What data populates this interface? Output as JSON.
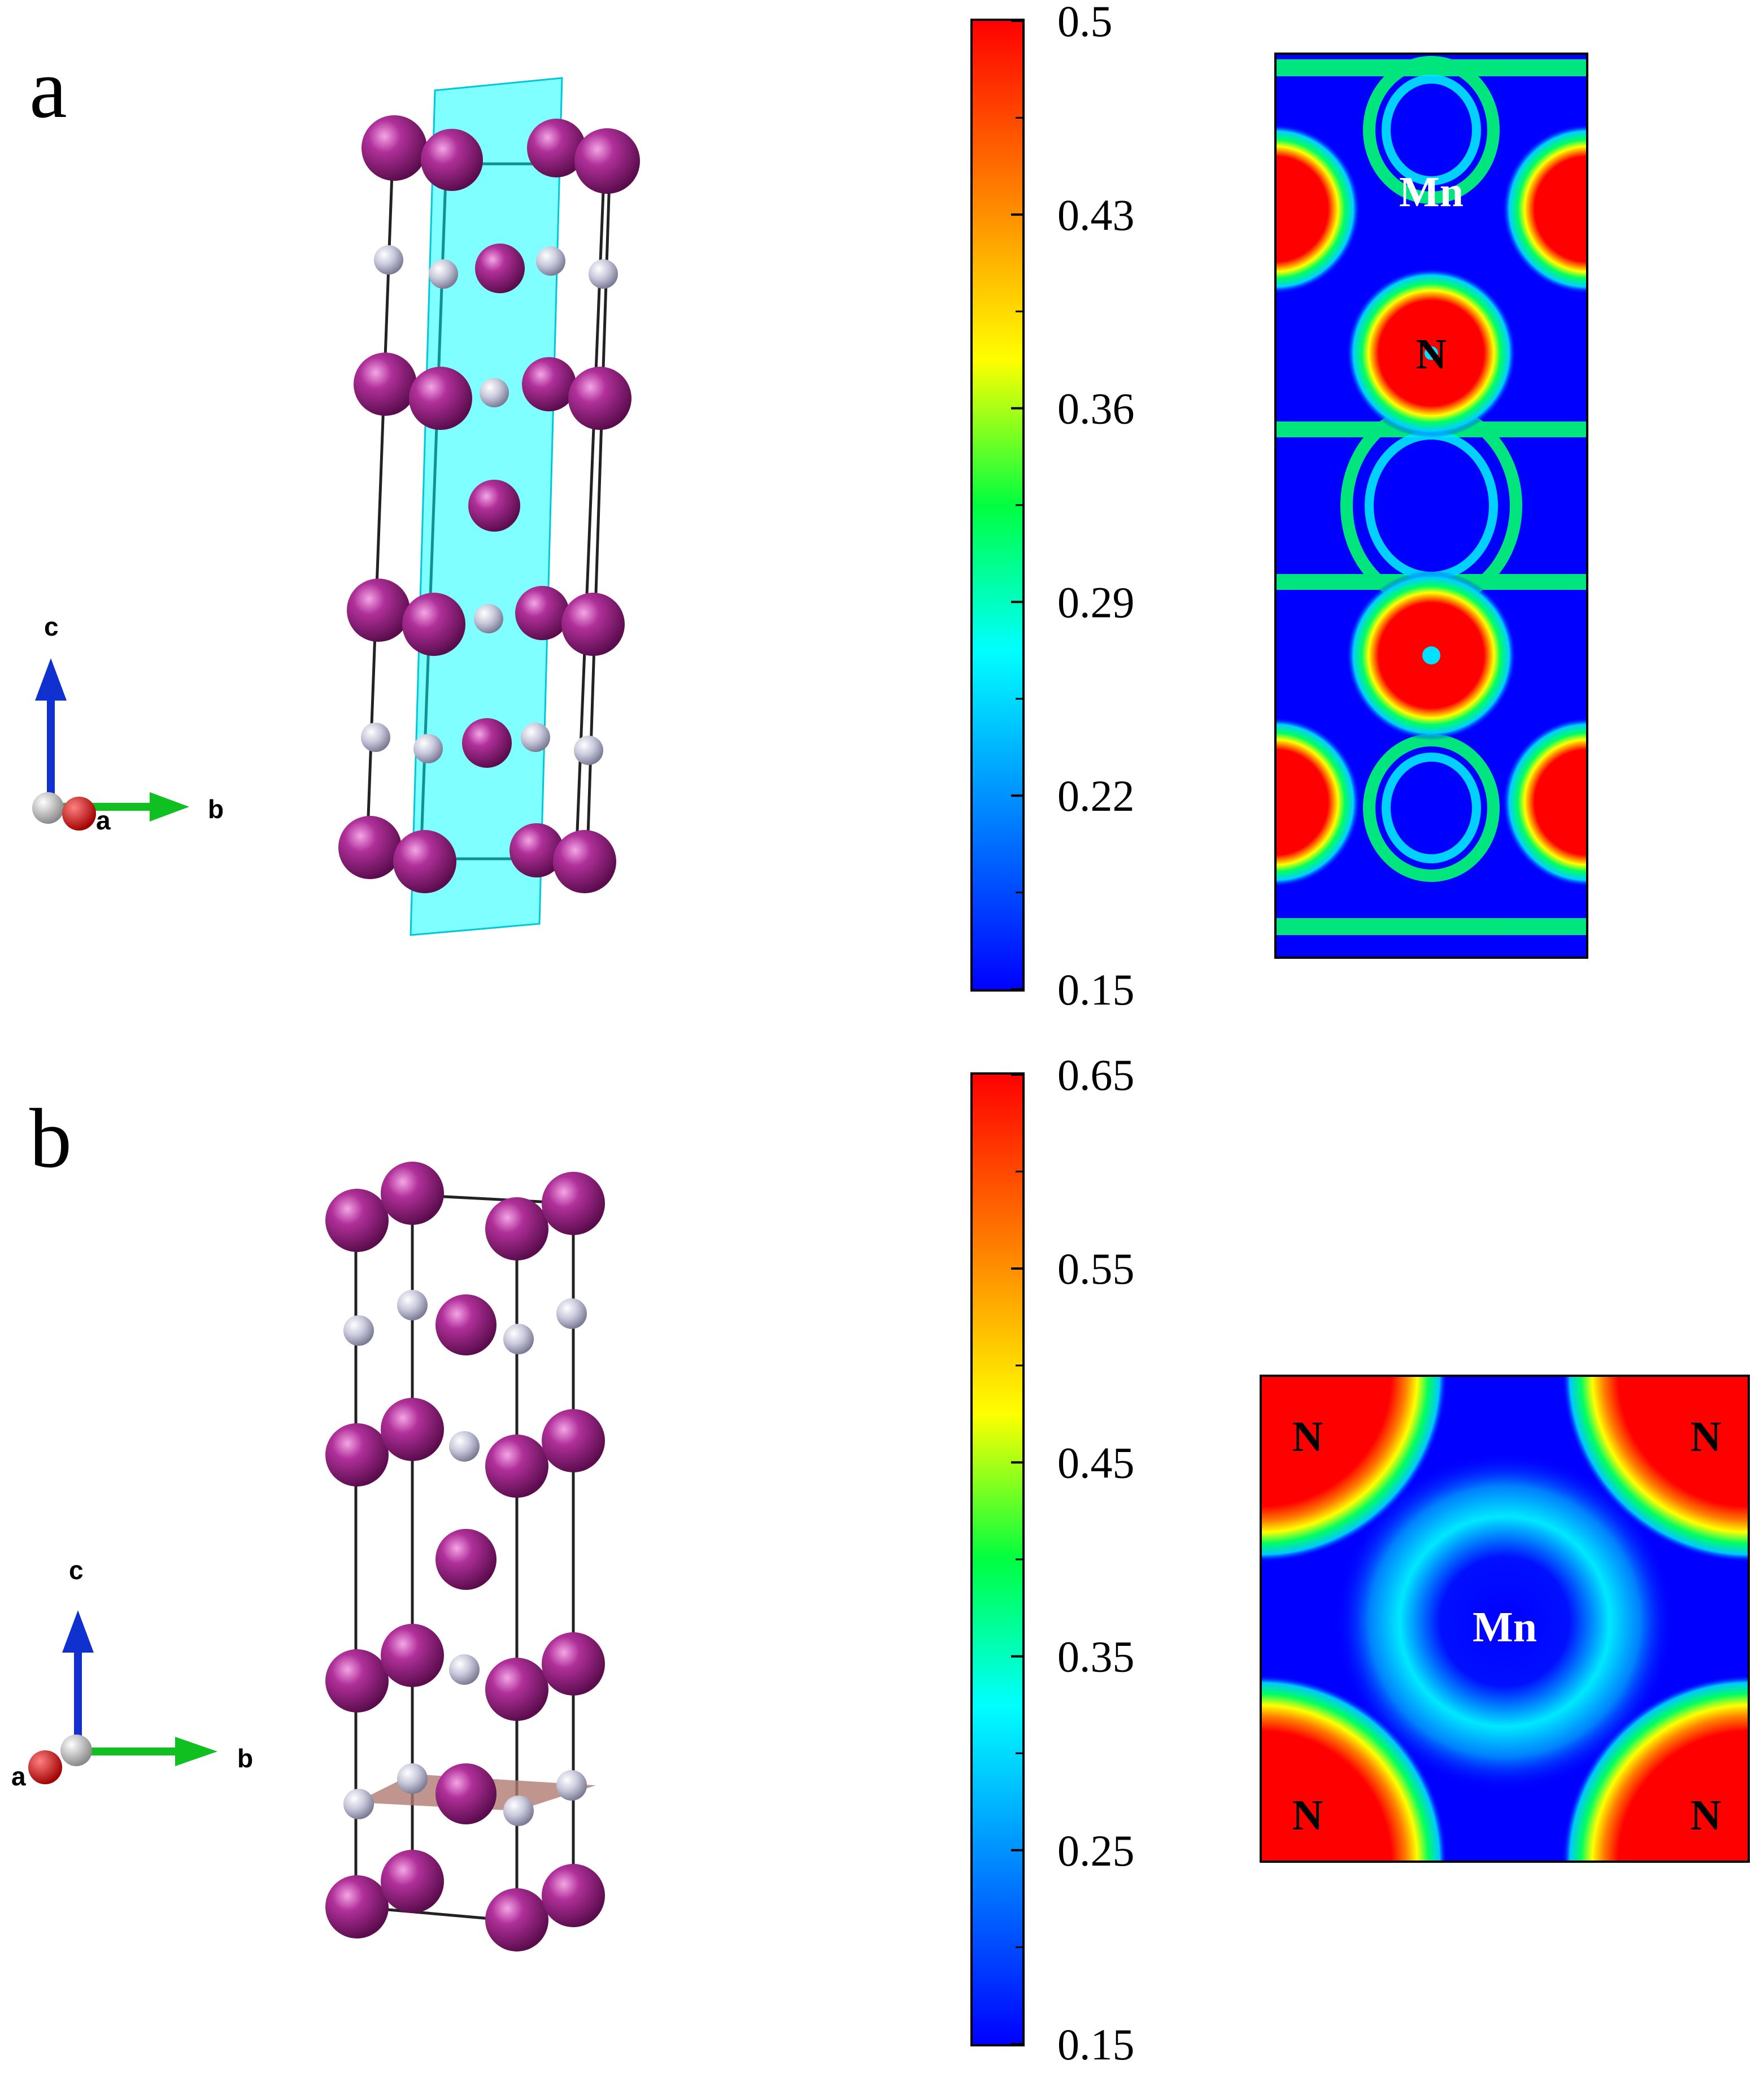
{
  "panels": [
    {
      "letter": "a",
      "axes": {
        "c": "c",
        "a": "a",
        "b": "b"
      },
      "colorbar": {
        "ticks": [
          "0.5",
          "0.43",
          "0.36",
          "0.29",
          "0.22",
          "0.15"
        ],
        "min": 0.15,
        "max": 0.5,
        "colors": [
          "#0000ff",
          "#00bfff",
          "#00ff80",
          "#ffff00",
          "#ff8000",
          "#ff0000"
        ]
      },
      "map_labels": {
        "mn": "Mn",
        "n": "N"
      },
      "cut_plane_color": "#00ffff"
    },
    {
      "letter": "b",
      "axes": {
        "c": "c",
        "a": "a",
        "b": "b"
      },
      "colorbar": {
        "ticks": [
          "0.65",
          "0.55",
          "0.45",
          "0.35",
          "0.25",
          "0.15"
        ],
        "min": 0.15,
        "max": 0.65,
        "colors": [
          "#0000ff",
          "#00bfff",
          "#00ff80",
          "#ffff00",
          "#ff8000",
          "#ff0000"
        ]
      },
      "map_labels": {
        "n_tl": "N",
        "n_tr": "N",
        "n_bl": "N",
        "n_br": "N",
        "mn": "Mn"
      },
      "cut_plane_color": "#b07a70"
    }
  ],
  "atom_colors": {
    "mn": "#8b1a7a",
    "n": "#c8c8dc"
  }
}
